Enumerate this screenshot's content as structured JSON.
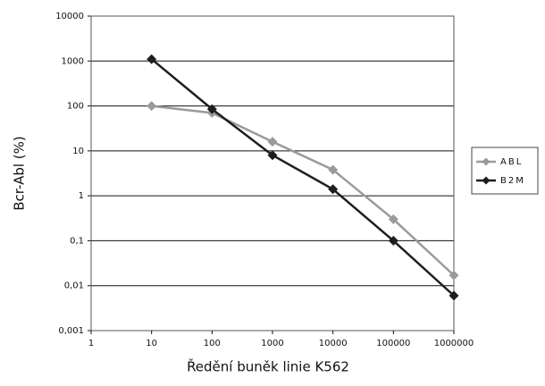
{
  "chart_data": {
    "type": "line",
    "xlabel": "Ředění buněk linie K562",
    "ylabel": "Bcr-Abl (%)",
    "x": [
      10,
      100,
      1000,
      10000,
      100000,
      1000000
    ],
    "series": [
      {
        "name": "ABL",
        "color": "#9a9a9a",
        "values": [
          100,
          70,
          16,
          3.8,
          0.3,
          0.017
        ]
      },
      {
        "name": "B2M",
        "color": "#1e1e1e",
        "values": [
          1100,
          85,
          8,
          1.4,
          0.1,
          0.006
        ]
      }
    ],
    "xscale": "log",
    "yscale": "log",
    "xlim": [
      1,
      1000000
    ],
    "xticks": [
      1,
      10,
      100,
      1000,
      10000,
      100000,
      1000000
    ],
    "ylim": [
      0.001,
      10000
    ],
    "yticks": [
      {
        "value": 0.001,
        "label": "0,001"
      },
      {
        "value": 0.01,
        "label": "0,01"
      },
      {
        "value": 0.1,
        "label": "0,1"
      },
      1,
      10,
      100,
      1000,
      10000
    ],
    "grid": true,
    "legend": "right"
  }
}
